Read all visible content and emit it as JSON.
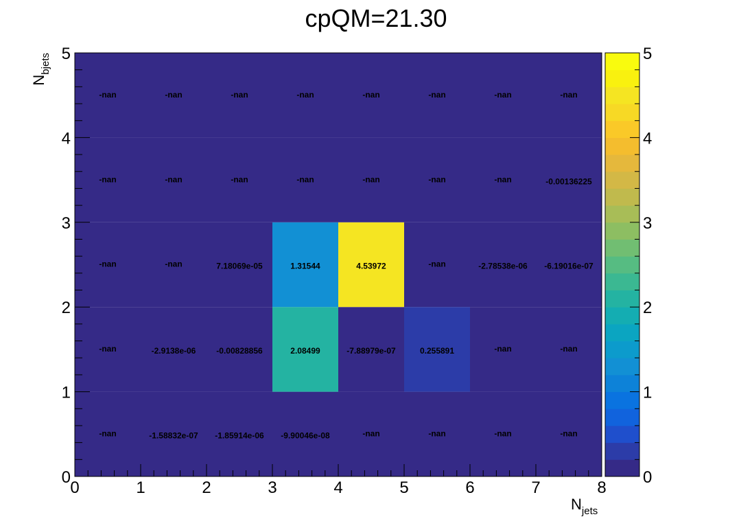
{
  "title": "cpQM=21.30",
  "chart_data": {
    "type": "heatmap",
    "title": "cpQM=21.30",
    "xlabel": "N",
    "xlabel_sub": "jets",
    "ylabel": "N",
    "ylabel_sub": "bjets",
    "xlim": [
      0,
      8
    ],
    "ylim": [
      0,
      5
    ],
    "zlim": [
      0,
      5
    ],
    "x_ticks": [
      "0",
      "1",
      "2",
      "3",
      "4",
      "5",
      "6",
      "7",
      "8"
    ],
    "y_ticks": [
      "0",
      "1",
      "2",
      "3",
      "4",
      "5"
    ],
    "z_ticks": [
      "0",
      "1",
      "2",
      "3",
      "4",
      "5"
    ],
    "colormap": "viridis",
    "cells": [
      [
        {
          "value": null,
          "label": "-nan"
        },
        {
          "value": -1.58832e-07,
          "label": "-1.58832e-07"
        },
        {
          "value": -1.85914e-06,
          "label": "-1.85914e-06"
        },
        {
          "value": -9.90046e-08,
          "label": "-9.90046e-08"
        },
        {
          "value": null,
          "label": "-nan"
        },
        {
          "value": null,
          "label": "-nan"
        },
        {
          "value": null,
          "label": "-nan"
        },
        {
          "value": null,
          "label": "-nan"
        }
      ],
      [
        {
          "value": null,
          "label": "-nan"
        },
        {
          "value": -2.9138e-06,
          "label": "-2.9138e-06"
        },
        {
          "value": -0.00828856,
          "label": "-0.00828856"
        },
        {
          "value": 2.08499,
          "label": "2.08499"
        },
        {
          "value": -7.88979e-07,
          "label": "-7.88979e-07"
        },
        {
          "value": 0.255891,
          "label": "0.255891"
        },
        {
          "value": null,
          "label": "-nan"
        },
        {
          "value": null,
          "label": "-nan"
        }
      ],
      [
        {
          "value": null,
          "label": "-nan"
        },
        {
          "value": null,
          "label": "-nan"
        },
        {
          "value": 7.18069e-05,
          "label": "7.18069e-05"
        },
        {
          "value": 1.31544,
          "label": "1.31544"
        },
        {
          "value": 4.53972,
          "label": "4.53972"
        },
        {
          "value": null,
          "label": "-nan"
        },
        {
          "value": -2.78538e-06,
          "label": "-2.78538e-06"
        },
        {
          "value": -6.19016e-07,
          "label": "-6.19016e-07"
        }
      ],
      [
        {
          "value": null,
          "label": "-nan"
        },
        {
          "value": null,
          "label": "-nan"
        },
        {
          "value": null,
          "label": "-nan"
        },
        {
          "value": null,
          "label": "-nan"
        },
        {
          "value": null,
          "label": "-nan"
        },
        {
          "value": null,
          "label": "-nan"
        },
        {
          "value": null,
          "label": "-nan"
        },
        {
          "value": -0.00136225,
          "label": "-0.00136225"
        }
      ],
      [
        {
          "value": null,
          "label": "-nan"
        },
        {
          "value": null,
          "label": "-nan"
        },
        {
          "value": null,
          "label": "-nan"
        },
        {
          "value": null,
          "label": "-nan"
        },
        {
          "value": null,
          "label": "-nan"
        },
        {
          "value": null,
          "label": "-nan"
        },
        {
          "value": null,
          "label": "-nan"
        },
        {
          "value": null,
          "label": "-nan"
        }
      ]
    ],
    "palette": [
      "#352a87",
      "#2c3ca8",
      "#1f4fcc",
      "#1163dd",
      "#0a73e0",
      "#0d82d8",
      "#1290d4",
      "#0c9bcc",
      "#0ba5c1",
      "#14adb2",
      "#24b3a2",
      "#3bb892",
      "#56bc82",
      "#71be72",
      "#8dbe62",
      "#a8bd57",
      "#c0ba4d",
      "#d3b846",
      "#e5b83c",
      "#f4bd2e",
      "#fac928",
      "#f7d925",
      "#f5e522",
      "#f9f10f",
      "#f9fb0e"
    ],
    "nan_color": "#352a87"
  }
}
